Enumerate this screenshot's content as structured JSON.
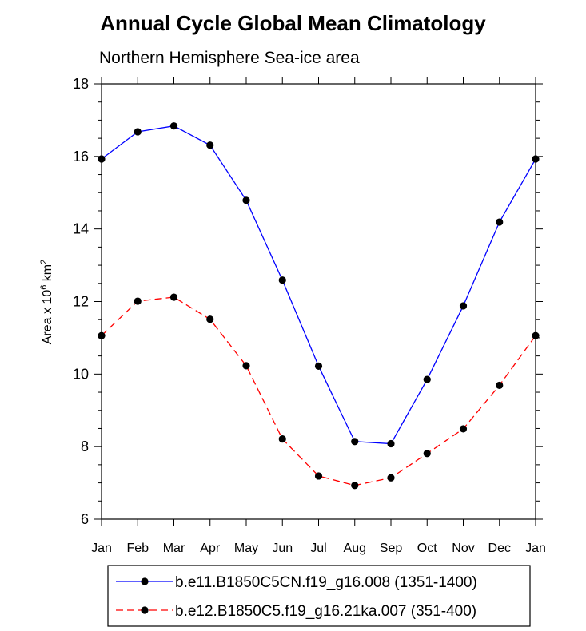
{
  "chart_data": {
    "type": "line",
    "title": "Annual Cycle Global Mean Climatology",
    "subtitle": "Northern Hemisphere Sea-ice area",
    "ylabel": "Area x 10",
    "ylabel_exponent": "6",
    "ylabel_unit": "km",
    "ylabel_unit_exponent": "2",
    "xlabel": "",
    "categories": [
      "Jan",
      "Feb",
      "Mar",
      "Apr",
      "May",
      "Jun",
      "Jul",
      "Aug",
      "Sep",
      "Oct",
      "Nov",
      "Dec",
      "Jan"
    ],
    "ylim": [
      6,
      18
    ],
    "yticks": [
      6,
      8,
      10,
      12,
      14,
      16,
      18
    ],
    "series": [
      {
        "name": "b.e11.B1850C5CN.f19_g16.008 (1351-1400)",
        "color": "#0000ff",
        "dash": "solid",
        "values": [
          15.93,
          16.68,
          16.84,
          16.31,
          14.79,
          12.59,
          10.22,
          8.14,
          8.08,
          9.85,
          11.88,
          14.19,
          15.93
        ]
      },
      {
        "name": "b.e12.B1850C5.f19_g16.21ka.007 (351-400)",
        "color": "#ff0000",
        "dash": "dashed",
        "values": [
          11.06,
          12.01,
          12.12,
          11.51,
          10.23,
          8.21,
          7.19,
          6.93,
          7.14,
          7.81,
          8.49,
          9.69,
          11.06
        ]
      }
    ],
    "legend_position": "bottom-center"
  }
}
